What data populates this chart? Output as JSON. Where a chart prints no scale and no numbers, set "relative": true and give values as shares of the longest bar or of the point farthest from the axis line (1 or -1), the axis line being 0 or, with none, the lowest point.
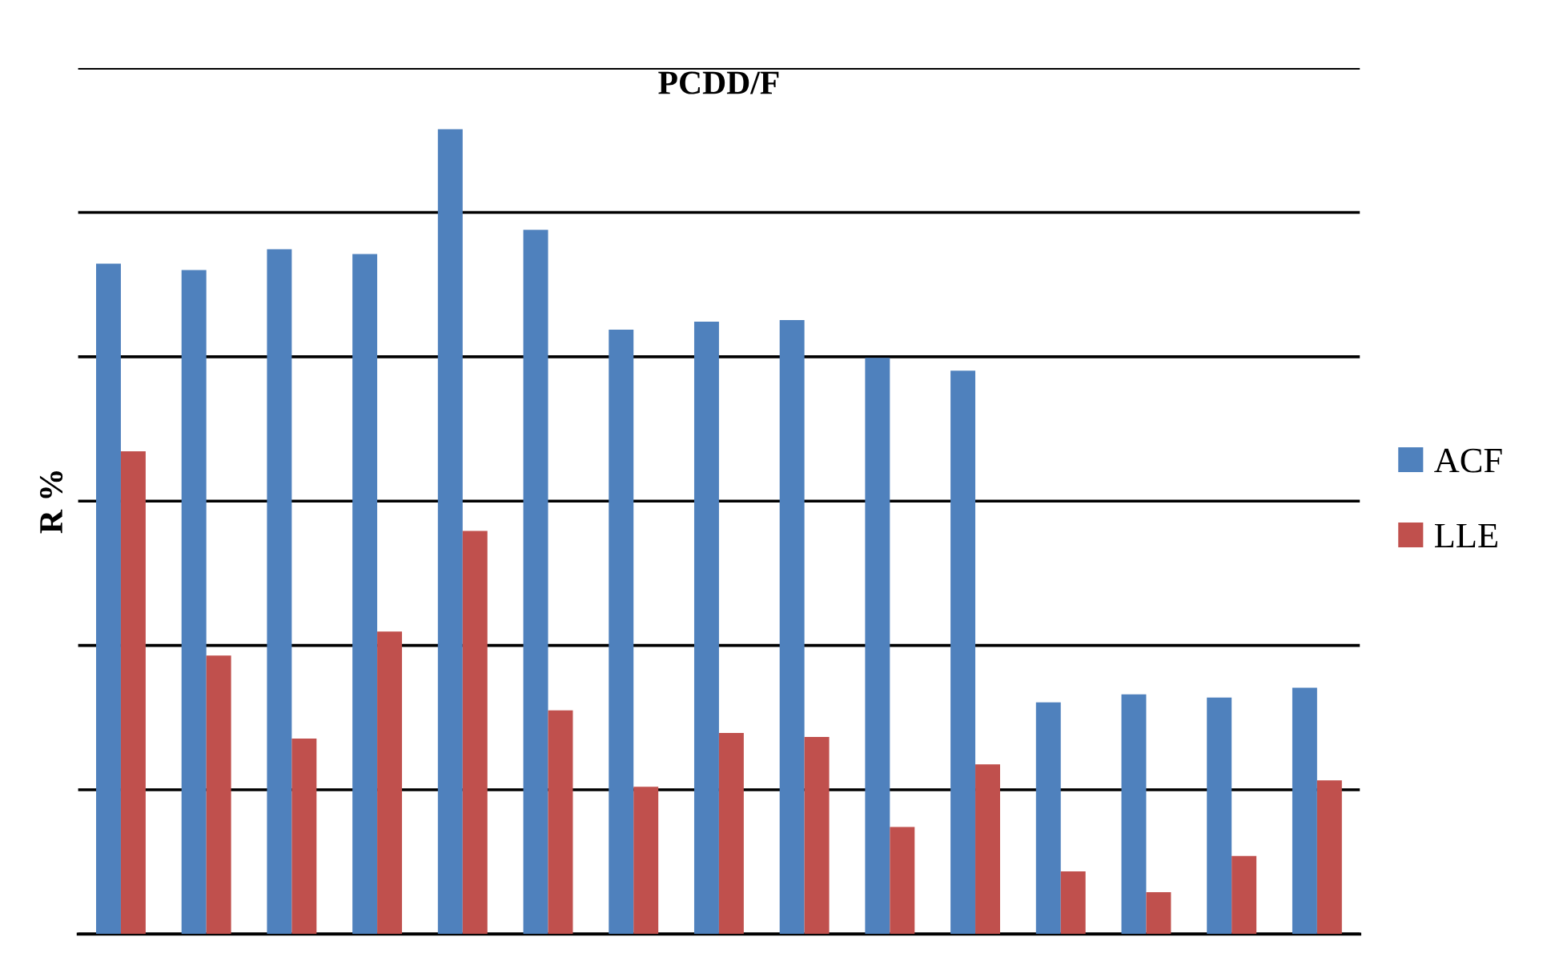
{
  "chart_data": {
    "type": "bar",
    "title": "PCDD/F",
    "ylabel": "R %",
    "relative": true,
    "grid": "y",
    "legend": "right",
    "categories": [
      null,
      null,
      null,
      null,
      null,
      null,
      null,
      null,
      null,
      null,
      null,
      null,
      null,
      null,
      null
    ],
    "series": [
      {
        "name": "ACF",
        "color": "#4f81bd",
        "values": [
          0.833,
          0.825,
          0.851,
          0.845,
          1,
          0.875,
          0.751,
          0.761,
          0.763,
          0.716,
          0.7,
          0.288,
          0.298,
          0.294,
          0.306
        ]
      },
      {
        "name": "LLE",
        "color": "#c0504d",
        "values": [
          0.6,
          0.346,
          0.243,
          0.376,
          0.501,
          0.278,
          0.183,
          0.25,
          0.245,
          0.133,
          0.211,
          0.078,
          0.052,
          0.097,
          0.191
        ]
      }
    ]
  }
}
